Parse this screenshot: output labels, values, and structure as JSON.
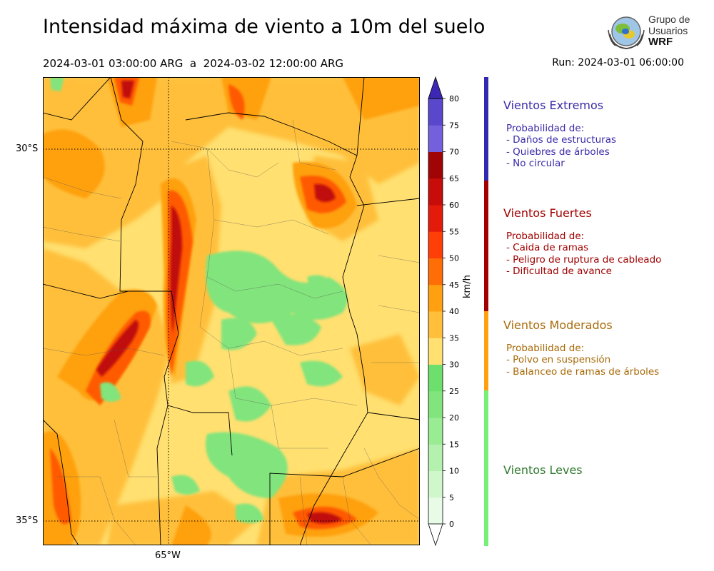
{
  "title": "Intensidad máxima de viento a 10m del suelo",
  "period": "2024-03-01 03:00:00 ARG  a  2024-03-02 12:00:00 ARG",
  "run": "Run: 2024-03-01 06:00:00",
  "logo": {
    "line1": "Grupo de",
    "line2": "Usuarios",
    "line3": "WRF"
  },
  "map": {
    "lat_labels": [
      "30°S",
      "35°S"
    ],
    "lon_labels": [
      "65°W"
    ]
  },
  "colorbar": {
    "unit": "km/h",
    "ticks": [
      "0",
      "5",
      "10",
      "15",
      "20",
      "25",
      "30",
      "35",
      "40",
      "45",
      "50",
      "55",
      "60",
      "65",
      "70",
      "75",
      "80"
    ],
    "colors": [
      "#e8fbe6",
      "#d0f6cc",
      "#b4f0ae",
      "#99ec92",
      "#82e47c",
      "#6cdf6c",
      "#ffe070",
      "#ffbf3a",
      "#ffa010",
      "#ff6e06",
      "#ff3e08",
      "#e41a0a",
      "#c80c0a",
      "#a00404",
      "#7460dc",
      "#5a48cc",
      "#4432bc"
    ],
    "extend_low_color": "#ffffff",
    "extend_high_color": "#3c28b4"
  },
  "categories": [
    {
      "title": "Vientos Extremos",
      "color": "#3a2aa8",
      "bar_color": "#3328b0",
      "lines": [
        "Probabilidad de:",
        "- Daños de estructuras",
        "- Quiebres de árboles",
        "- No circular"
      ]
    },
    {
      "title": "Vientos Fuertes",
      "color": "#a00000",
      "bar_color": "#a00000",
      "lines": [
        "Probabilidad de:",
        "- Caida de ramas",
        "- Peligro de ruptura de cableado",
        "- Dificultad de avance"
      ]
    },
    {
      "title": "Vientos Moderados",
      "color": "#a86a08",
      "bar_color": "#ffa010",
      "lines": [
        "Probabilidad de:",
        "- Polvo en suspensión",
        "- Balanceo de ramas de árboles"
      ]
    },
    {
      "title": "Vientos Leves",
      "color": "#2f7a2f",
      "bar_color": "#78f078",
      "lines": []
    }
  ]
}
